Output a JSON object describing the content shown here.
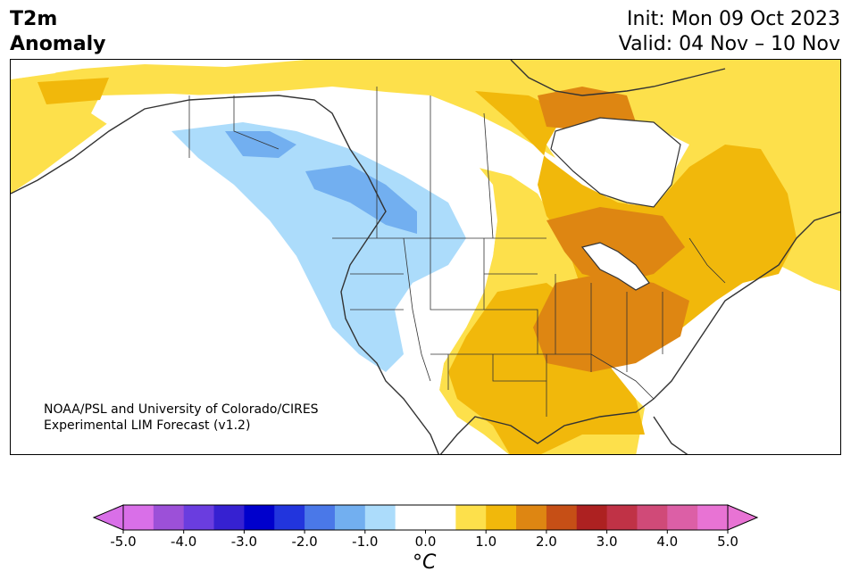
{
  "header": {
    "variable": "T2m",
    "subtitle": "Anomaly",
    "init": "Init: Mon 09 Oct 2023",
    "valid": "Valid: 04 Nov – 10 Nov"
  },
  "credit": {
    "line1": "NOAA/PSL and University of Colorado/CIRES",
    "line2": "Experimental LIM Forecast (v1.2)"
  },
  "colorbar": {
    "ticks": [
      "-5.0",
      "-4.0",
      "-3.0",
      "-2.0",
      "-1.0",
      "0.0",
      "1.0",
      "2.0",
      "3.0",
      "4.0",
      "5.0"
    ],
    "colors": [
      "#d96fe8",
      "#9c50d8",
      "#6a3ddf",
      "#3621d1",
      "#0000cc",
      "#2235dd",
      "#4a78e8",
      "#72aff0",
      "#acdcfb",
      "#ffffff",
      "#ffffff",
      "#fde04b",
      "#f1b80b",
      "#de8612",
      "#c64f16",
      "#ad2121",
      "#c03246",
      "#d04a78",
      "#dc5fa6",
      "#e873d4"
    ],
    "unit": "°C"
  },
  "map": {
    "region": "North America",
    "anomaly_colors": {
      "white": "#ffffff",
      "light_yellow": "#fde04b",
      "yellow_orange": "#f1b80b",
      "orange": "#de8612",
      "light_blue": "#acdcfb",
      "blue": "#72aff0"
    }
  }
}
